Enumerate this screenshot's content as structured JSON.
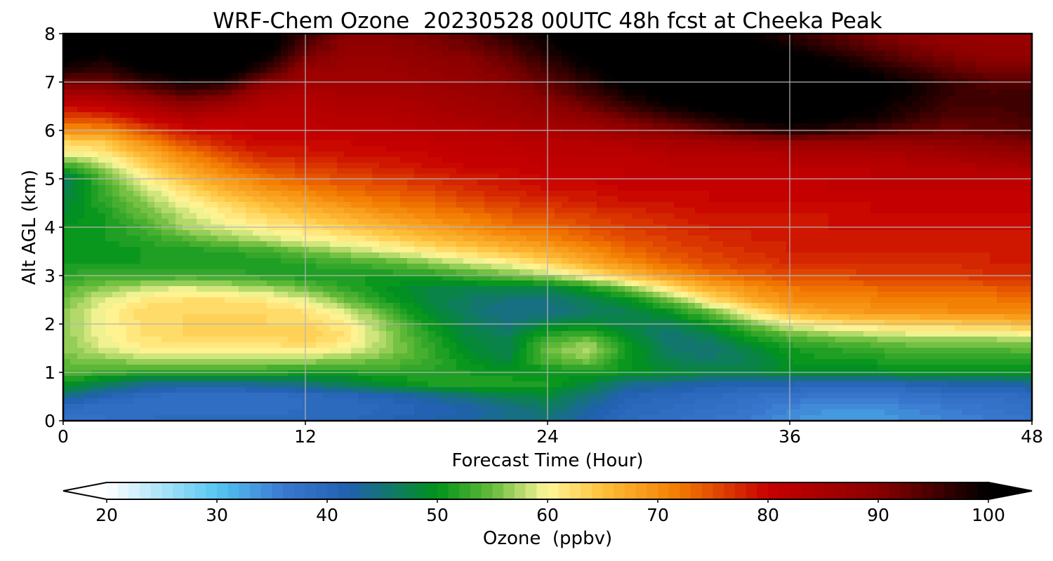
{
  "chart_data": {
    "type": "heatmap",
    "title": "WRF-Chem Ozone  20230528 00UTC 48h fcst at Cheeka Peak",
    "xlabel": "Forecast Time (Hour)",
    "ylabel": "Alt AGL (km)",
    "x_ticks": [
      0,
      12,
      24,
      36,
      48
    ],
    "y_ticks": [
      0,
      1,
      2,
      3,
      4,
      5,
      6,
      7,
      8
    ],
    "xlim": [
      0,
      48
    ],
    "ylim": [
      0,
      8
    ],
    "grid": true,
    "x": [
      0,
      2,
      4,
      6,
      8,
      10,
      12,
      14,
      16,
      18,
      20,
      22,
      24,
      26,
      28,
      30,
      32,
      34,
      36,
      38,
      40,
      42,
      44,
      46,
      48
    ],
    "y": [
      0,
      0.25,
      0.5,
      0.75,
      1,
      1.25,
      1.5,
      1.75,
      2,
      2.25,
      2.5,
      2.75,
      3,
      3.25,
      3.5,
      3.75,
      4,
      4.25,
      4.5,
      4.75,
      5,
      5.25,
      5.5,
      5.75,
      6,
      6.25,
      6.5,
      6.75,
      7,
      7.25,
      7.5,
      7.75,
      8
    ],
    "colorbar": {
      "label": "Ozone  (ppbv)",
      "min": 20,
      "max": 100,
      "step": 1,
      "ticks": [
        20,
        30,
        40,
        50,
        60,
        70,
        80,
        90,
        100
      ],
      "extend": "both",
      "colors": [
        "#ffffff",
        "#55c6f2",
        "#3a78d0",
        "#2160b0",
        "#00931a",
        "#66bb3a",
        "#fff79a",
        "#ffc03a",
        "#f27a00",
        "#c70000",
        "#8a0000",
        "#000000"
      ],
      "color_stops": [
        20,
        30,
        36,
        42,
        50,
        55,
        60,
        65,
        72,
        80,
        90,
        100
      ]
    },
    "values": [
      [
        37,
        38,
        39,
        40,
        40,
        40,
        40,
        40,
        41,
        42,
        43,
        44,
        45,
        42,
        39,
        38,
        37,
        36,
        34,
        33,
        33,
        34,
        35,
        36,
        37
      ],
      [
        39,
        38,
        38,
        38,
        38,
        38,
        39,
        39,
        40,
        41,
        42,
        44,
        46,
        43,
        40,
        39,
        38,
        37,
        35,
        34,
        34,
        35,
        36,
        37,
        38
      ],
      [
        44,
        41,
        39,
        38,
        38,
        38,
        39,
        40,
        41,
        43,
        45,
        47,
        48,
        45,
        41,
        40,
        39,
        38,
        37,
        36,
        36,
        37,
        38,
        38,
        39
      ],
      [
        50,
        47,
        44,
        43,
        43,
        44,
        45,
        47,
        49,
        51,
        52,
        52,
        51,
        48,
        44,
        43,
        42,
        41,
        41,
        40,
        40,
        41,
        42,
        42,
        43
      ],
      [
        54,
        53,
        52,
        52,
        52,
        52,
        51,
        51,
        52,
        52,
        51,
        50,
        50,
        51,
        50,
        49,
        48,
        48,
        49,
        49,
        49,
        50,
        50,
        50,
        50
      ],
      [
        55,
        56,
        57,
        57,
        57,
        57,
        57,
        56,
        55,
        53,
        50,
        48,
        54,
        56,
        50,
        47,
        46,
        47,
        50,
        51,
        51,
        52,
        52,
        52,
        52
      ],
      [
        56,
        59,
        61,
        61,
        61,
        61,
        62,
        60,
        57,
        53,
        49,
        47,
        55,
        58,
        51,
        46,
        45,
        48,
        51,
        52,
        53,
        54,
        54,
        54,
        55
      ],
      [
        56,
        60,
        62,
        63,
        63,
        63,
        64,
        62,
        57,
        52,
        48,
        47,
        52,
        54,
        49,
        45,
        47,
        51,
        54,
        56,
        57,
        58,
        58,
        58,
        59
      ],
      [
        56,
        60,
        62,
        63,
        63,
        63,
        63,
        61,
        56,
        51,
        47,
        45,
        48,
        49,
        47,
        47,
        50,
        55,
        60,
        62,
        63,
        64,
        64,
        65,
        66
      ],
      [
        56,
        60,
        63,
        63,
        63,
        63,
        62,
        59,
        54,
        49,
        46,
        44,
        44,
        46,
        47,
        50,
        55,
        61,
        66,
        68,
        69,
        69,
        70,
        70,
        70
      ],
      [
        55,
        59,
        61,
        62,
        62,
        61,
        59,
        55,
        51,
        48,
        46,
        45,
        45,
        47,
        50,
        55,
        62,
        67,
        70,
        71,
        71,
        72,
        72,
        72,
        73
      ],
      [
        54,
        56,
        58,
        59,
        58,
        57,
        55,
        52,
        50,
        48,
        48,
        48,
        48,
        51,
        56,
        62,
        67,
        70,
        72,
        73,
        73,
        74,
        74,
        74,
        75
      ],
      [
        52,
        53,
        53,
        53,
        53,
        52,
        51,
        51,
        51,
        51,
        53,
        55,
        57,
        61,
        65,
        69,
        72,
        74,
        75,
        75,
        76,
        76,
        76,
        77,
        77
      ],
      [
        51,
        51,
        51,
        51,
        51,
        51,
        52,
        53,
        54,
        56,
        58,
        60,
        63,
        67,
        70,
        73,
        75,
        76,
        77,
        77,
        77,
        77,
        77,
        78,
        78
      ],
      [
        50,
        50,
        51,
        51,
        52,
        53,
        55,
        57,
        59,
        61,
        63,
        65,
        67,
        70,
        73,
        75,
        76,
        77,
        78,
        78,
        78,
        78,
        78,
        78,
        78
      ],
      [
        50,
        51,
        52,
        54,
        56,
        58,
        60,
        61,
        63,
        65,
        67,
        69,
        71,
        73,
        75,
        76,
        77,
        78,
        78,
        78,
        78,
        78,
        78,
        78,
        79
      ],
      [
        50,
        51,
        53,
        57,
        59,
        61,
        62,
        64,
        66,
        68,
        70,
        72,
        73,
        75,
        76,
        77,
        78,
        78,
        78,
        79,
        79,
        79,
        79,
        79,
        79
      ],
      [
        49,
        51,
        55,
        58,
        61,
        63,
        65,
        67,
        69,
        71,
        72,
        74,
        75,
        76,
        77,
        78,
        79,
        79,
        79,
        79,
        80,
        80,
        80,
        80,
        80
      ],
      [
        48,
        52,
        56,
        60,
        63,
        66,
        68,
        70,
        72,
        73,
        75,
        76,
        77,
        78,
        79,
        79,
        80,
        80,
        80,
        80,
        80,
        80,
        80,
        80,
        80
      ],
      [
        47,
        53,
        58,
        62,
        66,
        69,
        71,
        73,
        74,
        75,
        77,
        78,
        79,
        79,
        80,
        80,
        80,
        80,
        80,
        81,
        81,
        81,
        81,
        81,
        81
      ],
      [
        46,
        54,
        60,
        65,
        69,
        72,
        74,
        75,
        76,
        77,
        78,
        79,
        80,
        80,
        81,
        81,
        81,
        81,
        81,
        81,
        82,
        82,
        82,
        82,
        82
      ],
      [
        52,
        57,
        63,
        68,
        72,
        75,
        76,
        77,
        78,
        79,
        80,
        80,
        81,
        81,
        81,
        82,
        82,
        82,
        82,
        82,
        82,
        83,
        83,
        84,
        85
      ],
      [
        59,
        61,
        66,
        71,
        75,
        78,
        78,
        79,
        79,
        80,
        81,
        81,
        82,
        82,
        82,
        83,
        83,
        83,
        84,
        84,
        84,
        85,
        86,
        87,
        88
      ],
      [
        63,
        64,
        70,
        75,
        78,
        80,
        80,
        80,
        81,
        81,
        82,
        82,
        83,
        83,
        84,
        85,
        86,
        87,
        88,
        88,
        88,
        88,
        89,
        90,
        91
      ],
      [
        70,
        70,
        75,
        79,
        80,
        81,
        81,
        82,
        82,
        83,
        83,
        84,
        85,
        86,
        88,
        90,
        93,
        96,
        98,
        97,
        95,
        93,
        92,
        93,
        94
      ],
      [
        75,
        76,
        80,
        83,
        82,
        82,
        82,
        83,
        83,
        84,
        85,
        86,
        87,
        89,
        92,
        95,
        98,
        100,
        101,
        100,
        99,
        96,
        94,
        94,
        95
      ],
      [
        80,
        81,
        84,
        88,
        86,
        83,
        83,
        84,
        84,
        85,
        86,
        87,
        89,
        92,
        96,
        99,
        101,
        102,
        102,
        102,
        100,
        98,
        95,
        95,
        96
      ],
      [
        85,
        86,
        90,
        94,
        92,
        85,
        84,
        85,
        85,
        86,
        87,
        88,
        91,
        95,
        99,
        101,
        102,
        102,
        102,
        102,
        101,
        99,
        96,
        95,
        96
      ],
      [
        92,
        92,
        96,
        99,
        98,
        90,
        86,
        86,
        86,
        87,
        88,
        90,
        93,
        97,
        101,
        102,
        102,
        102,
        102,
        102,
        101,
        99,
        96,
        94,
        94
      ],
      [
        98,
        96,
        100,
        102,
        102,
        96,
        88,
        87,
        87,
        88,
        89,
        91,
        95,
        99,
        102,
        102,
        102,
        102,
        102,
        101,
        99,
        96,
        93,
        91,
        91
      ],
      [
        101,
        99,
        102,
        102,
        102,
        100,
        91,
        88,
        88,
        89,
        90,
        93,
        97,
        101,
        102,
        102,
        102,
        102,
        101,
        99,
        96,
        93,
        91,
        89,
        89
      ],
      [
        102,
        101,
        102,
        102,
        102,
        102,
        94,
        89,
        89,
        90,
        92,
        95,
        99,
        102,
        102,
        102,
        102,
        101,
        99,
        96,
        93,
        91,
        89,
        88,
        88
      ],
      [
        102,
        102,
        102,
        102,
        102,
        102,
        96,
        90,
        90,
        91,
        93,
        97,
        100,
        102,
        102,
        102,
        102,
        100,
        97,
        94,
        91,
        89,
        88,
        87,
        87
      ]
    ]
  }
}
